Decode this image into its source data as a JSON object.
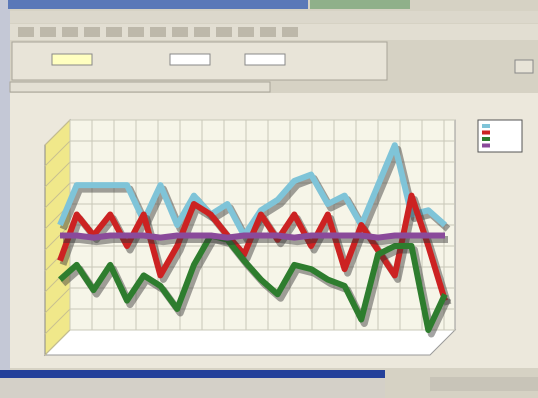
{
  "chart_data": {
    "type": "line",
    "ylim": [
      0,
      100
    ],
    "yticks": [
      0,
      10,
      20,
      30,
      40,
      50,
      60,
      70,
      80,
      90,
      100
    ],
    "grid": true,
    "series": [
      {
        "color": "#7fc4d8",
        "values": [
          50,
          69,
          69,
          69,
          69,
          52,
          69,
          50,
          64,
          55,
          60,
          45,
          57,
          62,
          71,
          74,
          60,
          64,
          50,
          69,
          88,
          55,
          57,
          50
        ]
      },
      {
        "color": "#cc2222",
        "values": [
          33,
          55,
          45,
          55,
          40,
          55,
          26,
          40,
          60,
          55,
          45,
          36,
          55,
          43,
          55,
          40,
          55,
          29,
          50,
          38,
          26,
          64,
          40,
          14
        ]
      },
      {
        "color": "#2e7d2e",
        "values": [
          24,
          31,
          19,
          31,
          14,
          26,
          21,
          10,
          31,
          45,
          43,
          33,
          24,
          17,
          31,
          29,
          24,
          21,
          5,
          36,
          40,
          40,
          0,
          17
        ]
      },
      {
        "color": "#8a4a9a",
        "values": [
          45,
          45,
          44,
          45,
          45,
          45,
          44,
          45,
          45,
          45,
          44,
          45,
          45,
          45,
          44,
          45,
          45,
          45,
          45,
          44,
          45,
          45,
          45,
          45
        ]
      }
    ]
  }
}
